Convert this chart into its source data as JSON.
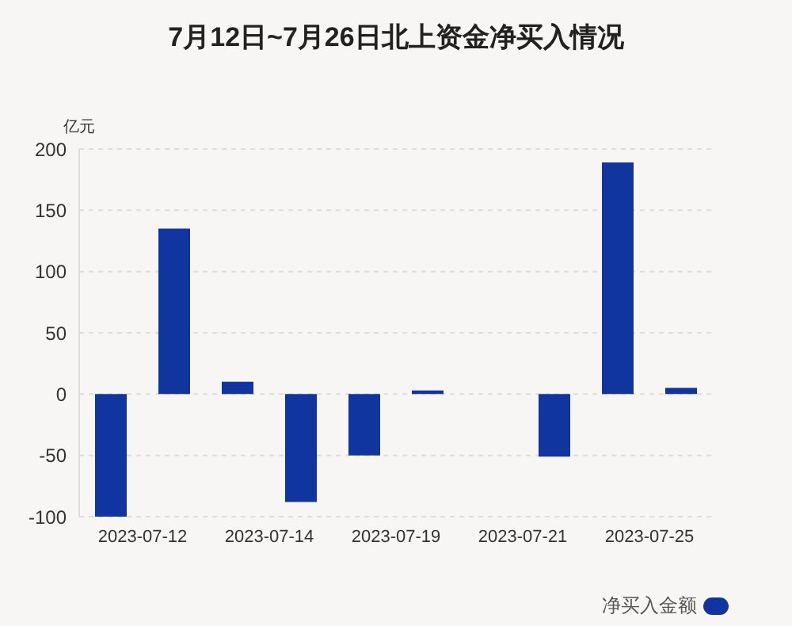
{
  "chart_data": {
    "type": "bar",
    "title": "7月12日~7月26日北上资金净买入情况",
    "ylabel": "亿元",
    "categories": [
      "2023-07-12",
      null,
      "2023-07-14",
      null,
      "2023-07-19",
      null,
      "2023-07-21",
      null,
      "2023-07-25",
      null
    ],
    "series": [
      {
        "name": "净买入金额",
        "color": "#10359e",
        "values": [
          -100,
          135,
          10,
          -88,
          -50,
          3,
          null,
          -51,
          189,
          5
        ]
      }
    ],
    "ylim": [
      -100,
      200
    ],
    "yticks": [
      -100,
      -50,
      0,
      50,
      100,
      150,
      200
    ],
    "grid": "y",
    "legend": "bottom right"
  }
}
